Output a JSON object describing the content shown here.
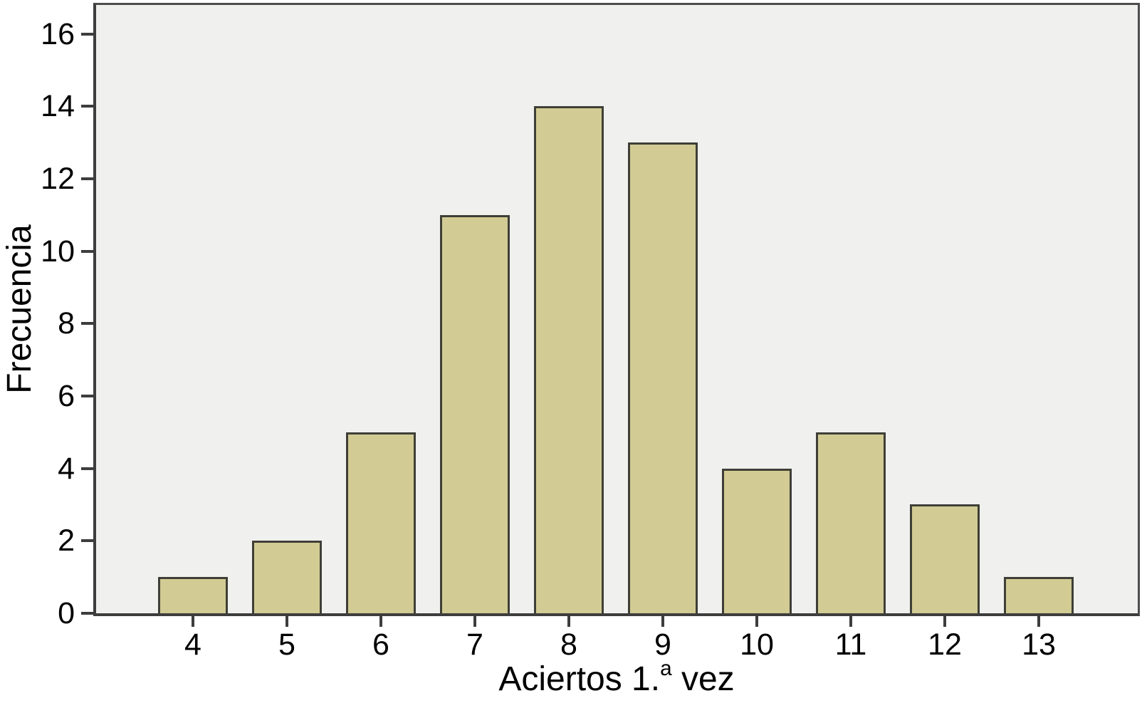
{
  "chart_data": {
    "type": "bar",
    "title": "",
    "categories": [
      "4",
      "5",
      "6",
      "7",
      "8",
      "9",
      "10",
      "11",
      "12",
      "13"
    ],
    "values": [
      1,
      2,
      5,
      11,
      14,
      13,
      4,
      5,
      3,
      1
    ],
    "xlabel": "Aciertos 1.ª vez",
    "xlabel_parts": {
      "prefix": "Aciertos 1.",
      "sup": "a",
      "suffix": " vez"
    },
    "ylabel": "Frecuencia",
    "yticks": [
      0,
      2,
      4,
      6,
      8,
      10,
      12,
      14,
      16
    ],
    "ylim": [
      0,
      16.8
    ],
    "grid": false,
    "legend": "none",
    "colors": {
      "bar_fill": "#D2CC94",
      "bar_border": "#3F3F37",
      "plot_background": "#F0F0EE",
      "page_background": "#FFFFFF",
      "axis_line": "#3D3D3D",
      "frame_line": "#4D4D4D",
      "text": "#000000"
    }
  }
}
